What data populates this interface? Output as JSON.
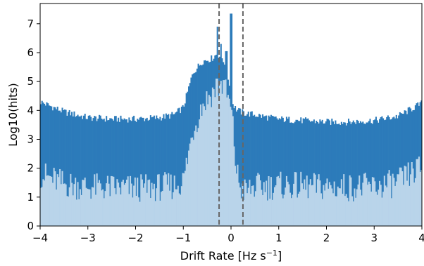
{
  "chart_data": {
    "type": "bar",
    "xlabel_main": "Drift Rate [Hz s",
    "xlabel_sup": "−1",
    "xlabel_end": "]",
    "ylabel": "Log10(hits)",
    "xlim": [
      -4,
      4
    ],
    "ylim": [
      0,
      7.7
    ],
    "xticks": [
      -4,
      -3,
      -2,
      -1,
      0,
      1,
      2,
      3,
      4
    ],
    "xtick_labels": [
      "−4",
      "−3",
      "−2",
      "−1",
      "0",
      "1",
      "2",
      "3",
      "4"
    ],
    "yticks": [
      0,
      1,
      2,
      3,
      4,
      5,
      6,
      7
    ],
    "ytick_labels": [
      "0",
      "1",
      "2",
      "3",
      "4",
      "5",
      "6",
      "7"
    ],
    "vlines": [
      -0.25,
      0.25
    ],
    "grid": false,
    "bin_width": 0.025,
    "colors": {
      "series1": "#2c7bba",
      "series2": "#b9d4ea",
      "vline": "#666666"
    },
    "series": [
      {
        "profile_x": [
          -4.0,
          -3.5,
          -3.0,
          -2.5,
          -2.0,
          -1.5,
          -1.2,
          -1.0,
          -0.8,
          -0.6,
          -0.4,
          -0.3,
          -0.2,
          -0.1,
          -0.05,
          0.0,
          0.05,
          0.1,
          0.2,
          0.3,
          0.5,
          0.8,
          1.0,
          1.5,
          2.0,
          2.5,
          3.0,
          3.5,
          4.0
        ],
        "profile_y": [
          4.3,
          3.95,
          3.75,
          3.7,
          3.7,
          3.75,
          3.85,
          4.1,
          5.3,
          5.7,
          5.8,
          5.95,
          5.85,
          5.55,
          5.0,
          4.4,
          4.2,
          4.05,
          3.95,
          3.9,
          3.85,
          3.75,
          3.7,
          3.65,
          3.6,
          3.6,
          3.65,
          3.8,
          4.25
        ],
        "jitter": 0.12,
        "spikes": [
          [
            0.0,
            7.35
          ],
          [
            -0.28,
            6.9
          ],
          [
            -0.22,
            6.3
          ],
          [
            -0.1,
            6.05
          ]
        ]
      },
      {
        "profile_x": [
          -4.0,
          -3.5,
          -3.0,
          -2.0,
          -1.5,
          -1.2,
          -1.0,
          -0.8,
          -0.6,
          -0.4,
          -0.3,
          -0.2,
          -0.1,
          0.0,
          0.05,
          0.1,
          0.2,
          0.3,
          0.5,
          1.0,
          2.0,
          3.0,
          3.5,
          4.0
        ],
        "profile_y": [
          1.8,
          1.45,
          1.35,
          1.3,
          1.35,
          1.4,
          1.55,
          3.3,
          4.2,
          4.6,
          4.8,
          4.9,
          4.6,
          4.0,
          3.2,
          2.0,
          1.3,
          1.2,
          1.35,
          1.4,
          1.35,
          1.35,
          1.5,
          2.05
        ],
        "jitter": 0.5,
        "spikes": [
          [
            -0.3,
            5.1
          ],
          [
            -0.15,
            5.05
          ]
        ]
      }
    ]
  }
}
